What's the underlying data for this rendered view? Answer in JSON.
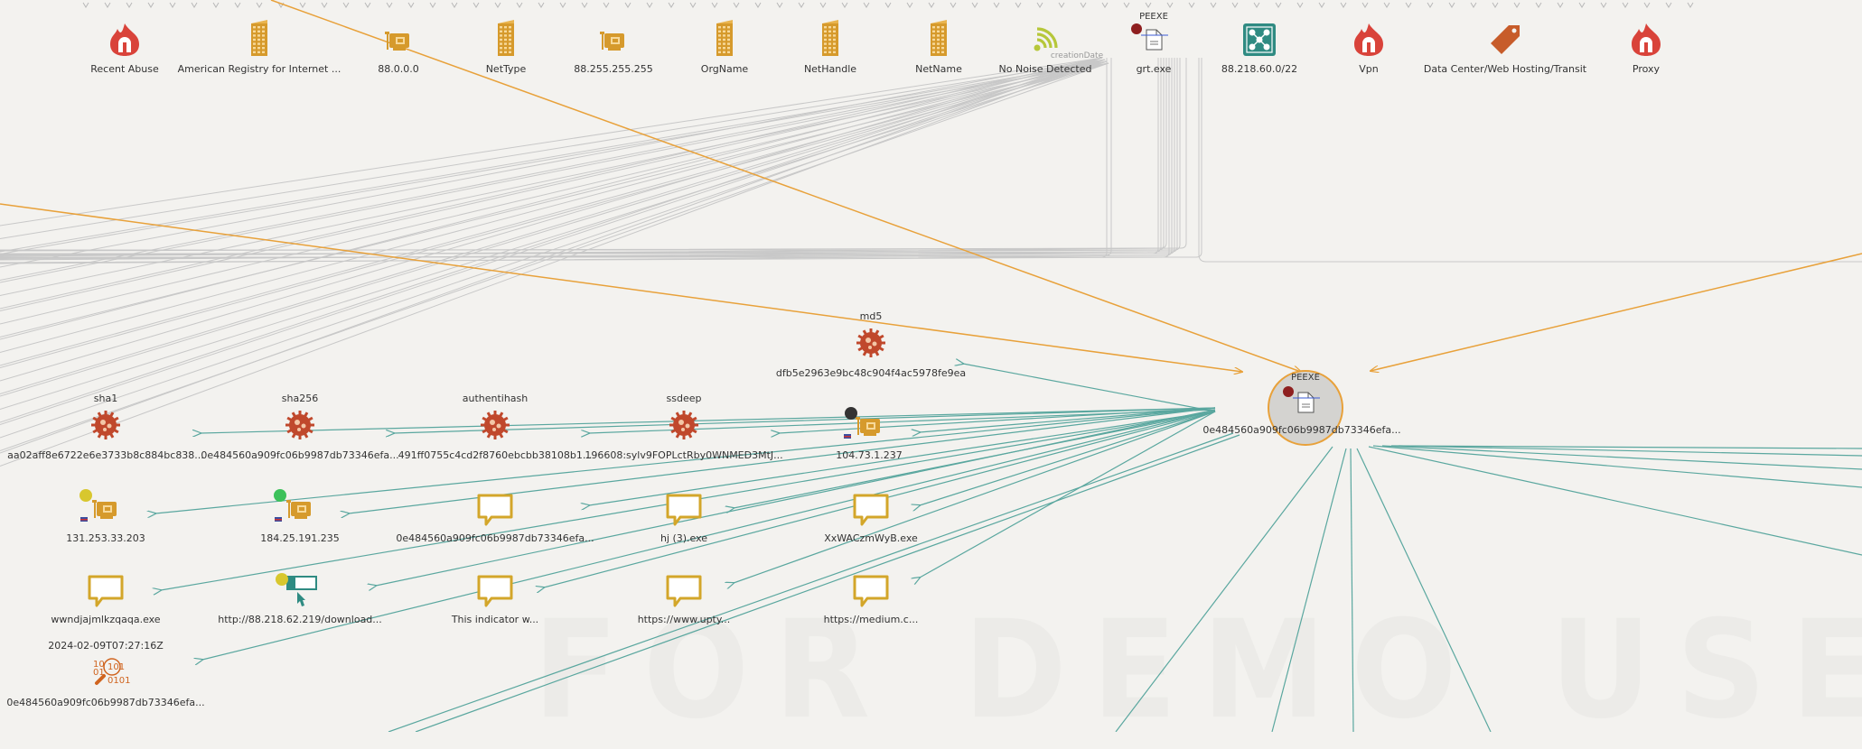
{
  "watermark": "FOR DEMO USE ONLY",
  "colors": {
    "teal": "#5aa79f",
    "orange": "#e8a13a",
    "gold": "#d3a62a",
    "icon_red": "#d9433a",
    "virus": "#c0482c",
    "amber": "#d69a2c",
    "grey_line": "#c8c8c8"
  },
  "top_nodes": [
    {
      "label": "Recent Abuse",
      "icon": "flame-icon"
    },
    {
      "label": "American Registry for Internet ...",
      "icon": "building-icon"
    },
    {
      "label": "88.0.0.0",
      "icon": "network-card-icon"
    },
    {
      "label": "NetType",
      "icon": "building-icon"
    },
    {
      "label": "88.255.255.255",
      "icon": "network-card-icon"
    },
    {
      "label": "OrgName",
      "icon": "building-icon"
    },
    {
      "label": "NetHandle",
      "icon": "building-icon"
    },
    {
      "label": "NetName",
      "icon": "building-icon"
    },
    {
      "label": "No Noise Detected",
      "icon": "signal-icon",
      "sublabel": "creationDate"
    },
    {
      "label": "grt.exe",
      "icon": "file-icon",
      "title": "PEEXE"
    },
    {
      "label": "88.218.60.0/22",
      "icon": "cidr-icon"
    },
    {
      "label": "Vpn",
      "icon": "flame-icon"
    },
    {
      "label": "Data Center/Web Hosting/Transit",
      "icon": "tag-icon"
    },
    {
      "label": "Proxy",
      "icon": "flame-icon"
    }
  ],
  "center_node": {
    "title": "PEEXE",
    "label": "0e484560a909fc06b9987db73346efa...",
    "icon": "file-icon"
  },
  "nodes": [
    {
      "id": "md5",
      "type": "hash",
      "title": "md5",
      "label": "dfb5e2963e9bc48c904f4ac5978fe9ea"
    },
    {
      "id": "sha1",
      "type": "hash",
      "title": "sha1",
      "label": "aa02aff8e6722e6e3733b8c884bc838..."
    },
    {
      "id": "sha256",
      "type": "hash",
      "title": "sha256",
      "label": "0e484560a909fc06b9987db73346efa..."
    },
    {
      "id": "authentihash",
      "type": "hash",
      "title": "authentihash",
      "label": "491ff0755c4cd2f8760ebcbb38108b1..."
    },
    {
      "id": "ssdeep",
      "type": "hash",
      "title": "ssdeep",
      "label": "196608:sylv9FOPLctRby0WNMED3MtJ..."
    },
    {
      "id": "ip1",
      "type": "ip",
      "label": "104.73.1.237"
    },
    {
      "id": "ip2",
      "type": "ip",
      "label": "131.253.33.203"
    },
    {
      "id": "ip3",
      "type": "ip",
      "label": "184.25.191.235"
    },
    {
      "id": "c1",
      "type": "comment",
      "label": "0e484560a909fc06b9987db73346efa..."
    },
    {
      "id": "c2",
      "type": "comment",
      "label": "hj (3).exe"
    },
    {
      "id": "c3",
      "type": "comment",
      "label": "XxWACzmWyB.exe"
    },
    {
      "id": "c4",
      "type": "comment",
      "label": "wwndjajmlkzqaqa.exe"
    },
    {
      "id": "url",
      "type": "url",
      "label": "http://88.218.62.219/download..."
    },
    {
      "id": "c5",
      "type": "comment",
      "label": "This indicator w..."
    },
    {
      "id": "c6",
      "type": "comment",
      "label": "https://www.upty..."
    },
    {
      "id": "c7",
      "type": "comment",
      "label": "https://medium.c..."
    },
    {
      "id": "bin",
      "type": "binary",
      "title": "2024-02-09T07:27:16Z",
      "label": "0e484560a909fc06b9987db73346efa..."
    }
  ]
}
